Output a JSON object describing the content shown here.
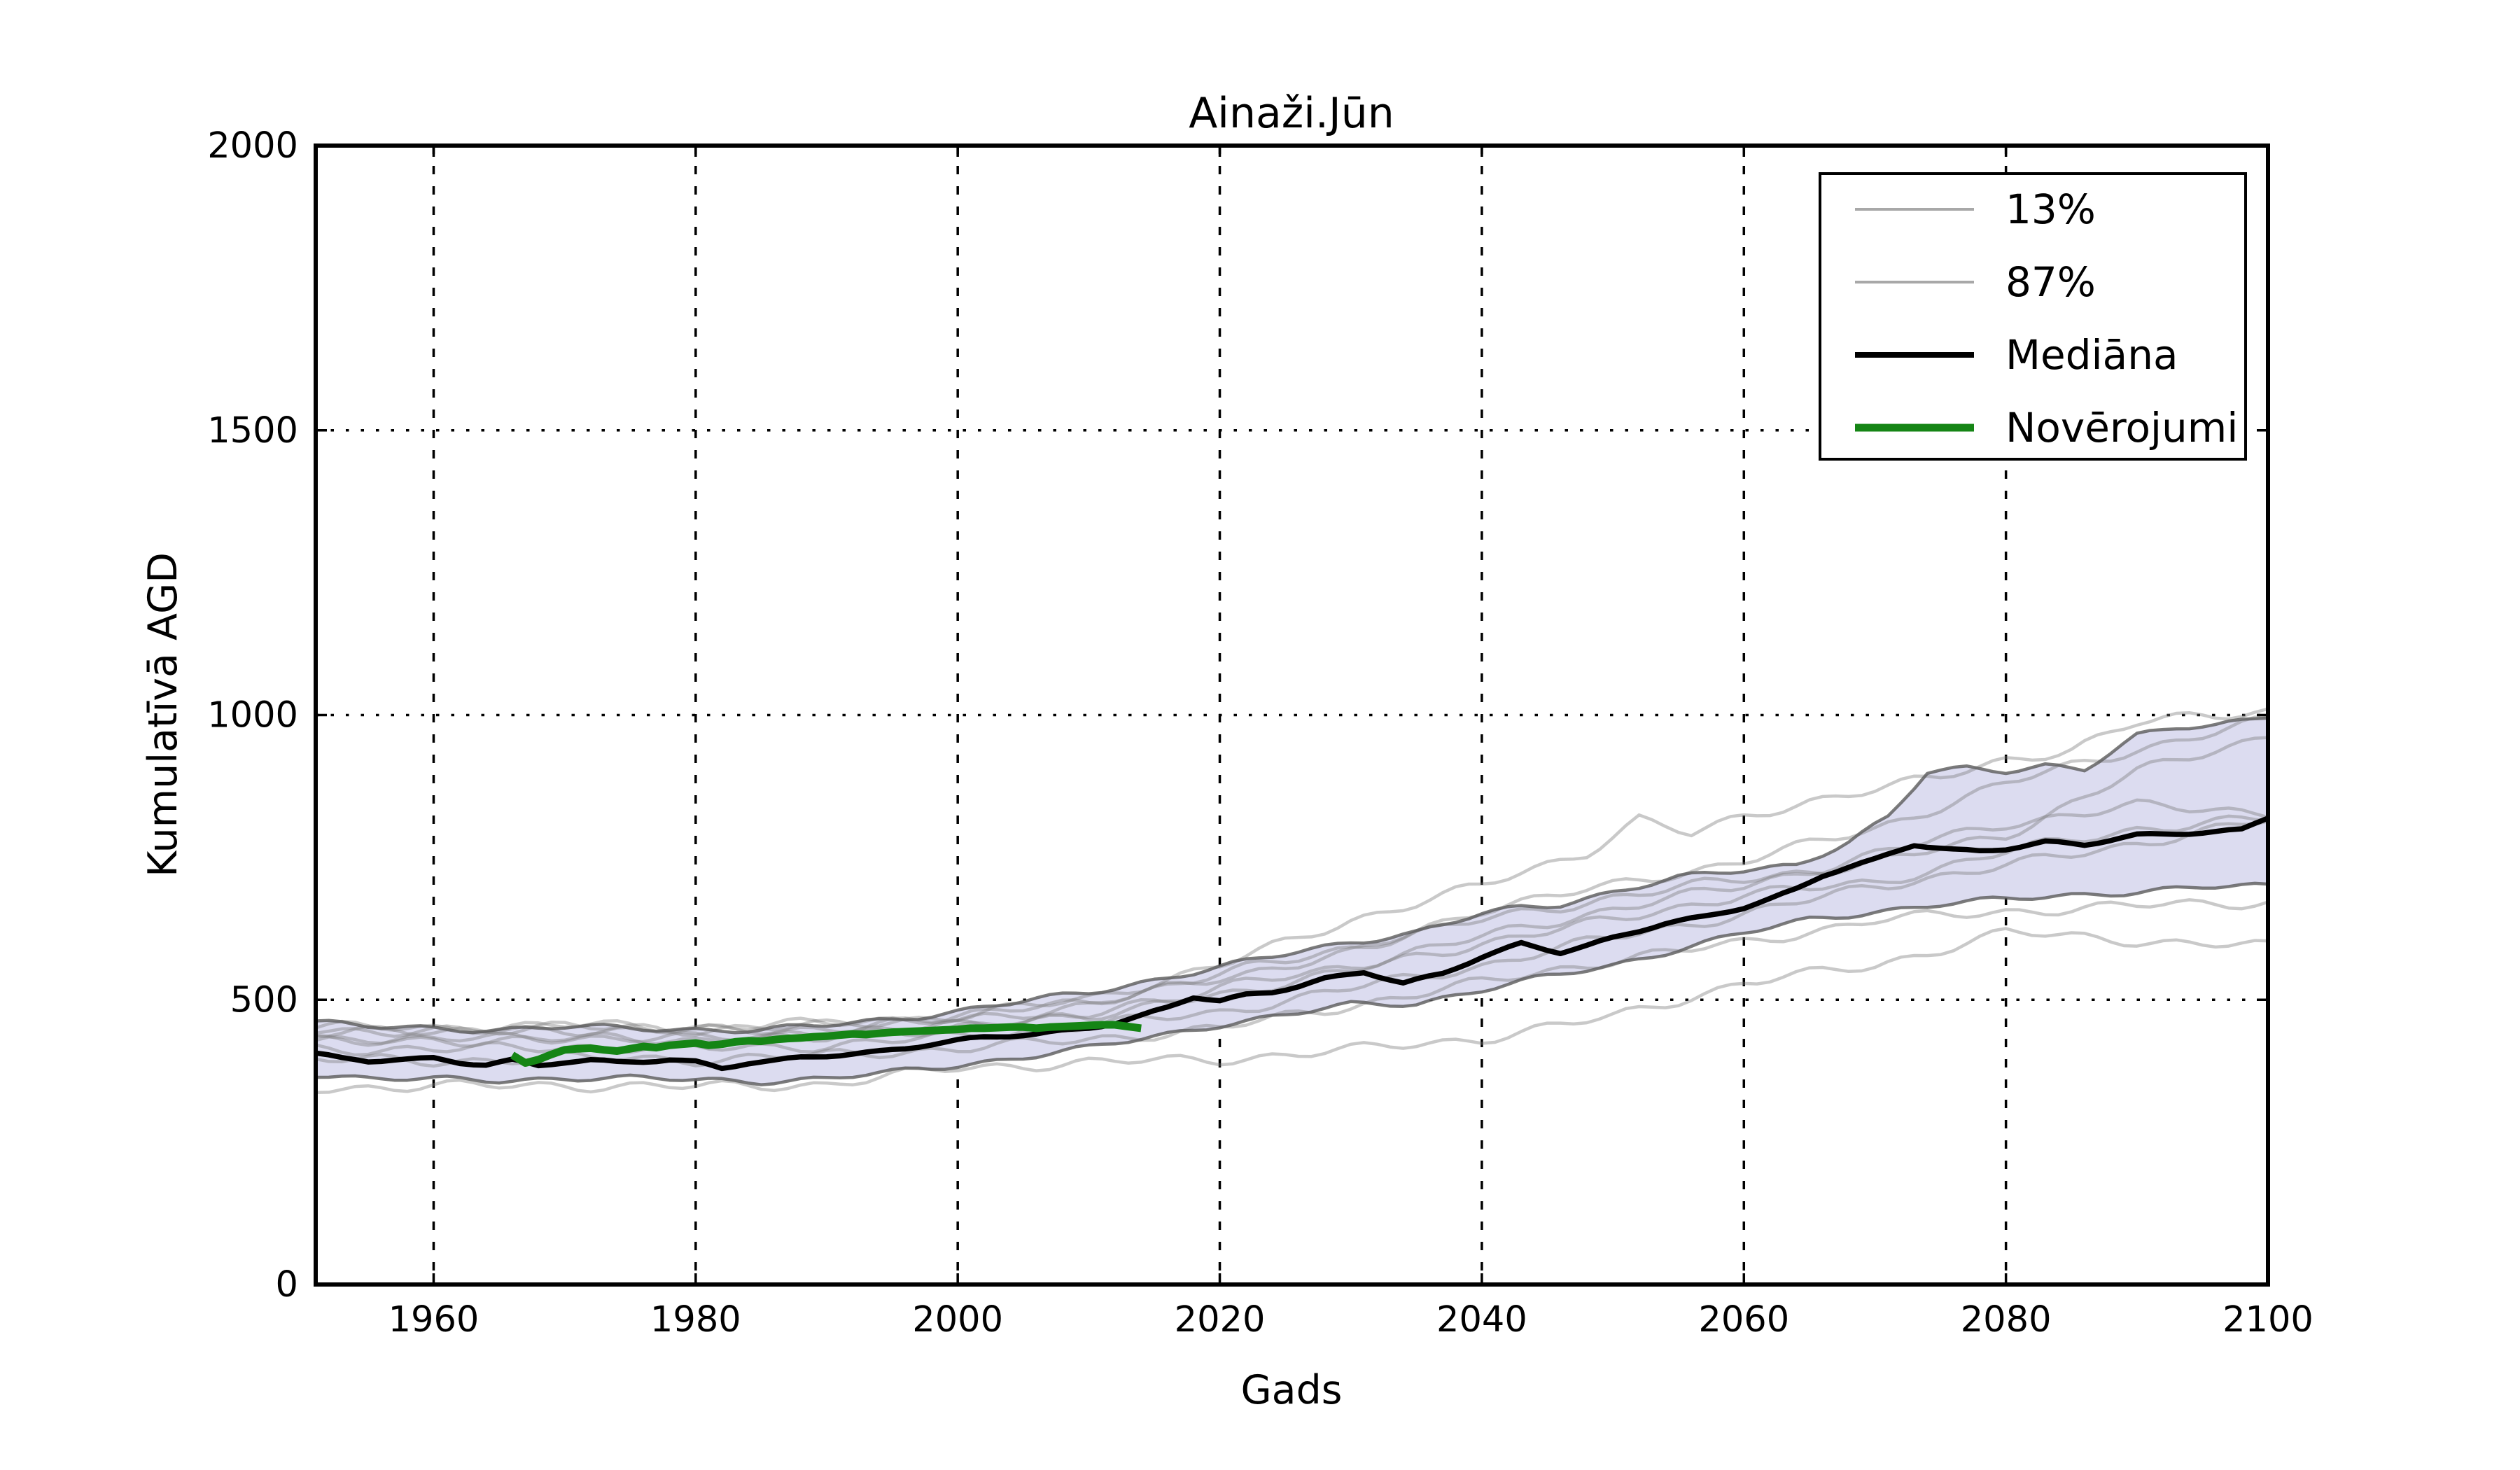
{
  "figure": {
    "title": "Ainaži.Jūn"
  },
  "chart_data": {
    "type": "line",
    "title": "Ainaži.Jūn",
    "xlabel": "Gads",
    "ylabel": "Kumulatīvā AGD",
    "xlim": [
      1951,
      2100
    ],
    "ylim": [
      0,
      2000
    ],
    "x_ticks": [
      1960,
      1980,
      2000,
      2020,
      2040,
      2060,
      2080,
      2100
    ],
    "y_ticks": [
      0,
      500,
      1000,
      1500,
      2000
    ],
    "grid": true,
    "colors": {
      "band_fill": "#dcdcf0",
      "band_edge": "rgba(90,90,90,0.8)",
      "ensemble": "rgba(120,120,120,0.40)",
      "median": "#000000",
      "observations": "#158515",
      "grid_line": "#000000",
      "legend_quantile_swatch": "#a8a8a8"
    },
    "legend": {
      "position": "upper right",
      "entries": [
        {
          "label": "13%",
          "color": "#a8a8a8",
          "width": 4
        },
        {
          "label": "87%",
          "color": "#a8a8a8",
          "width": 4
        },
        {
          "label": "Mediāna",
          "color": "#000000",
          "width": 8
        },
        {
          "label": "Novērojumi",
          "color": "#158515",
          "width": 11
        }
      ]
    },
    "band": {
      "name": "13-87% quantile band",
      "upper": {
        "x": [
          1951,
          1955,
          1960,
          1965,
          1970,
          1975,
          1980,
          1985,
          1990,
          1995,
          2000,
          2005,
          2010,
          2015,
          2020,
          2025,
          2030,
          2035,
          2040,
          2043,
          2046,
          2050,
          2055,
          2060,
          2064,
          2068,
          2071,
          2074,
          2077,
          2080,
          2083,
          2086,
          2090,
          2093,
          2096,
          2100
        ],
        "y": [
          461,
          452,
          450,
          448,
          452,
          450,
          448,
          447,
          455,
          466,
          480,
          497,
          513,
          535,
          557,
          580,
          602,
          618,
          650,
          662,
          668,
          690,
          714,
          727,
          738,
          778,
          820,
          898,
          906,
          903,
          913,
          905,
          962,
          977,
          983,
          1000
        ]
      },
      "lower": {
        "x": [
          1951,
          1955,
          1960,
          1965,
          1970,
          1975,
          1980,
          1985,
          1990,
          1995,
          2000,
          2005,
          2010,
          2015,
          2020,
          2025,
          2030,
          2035,
          2040,
          2045,
          2050,
          2055,
          2060,
          2065,
          2070,
          2075,
          2080,
          2085,
          2090,
          2095,
          2100
        ],
        "y": [
          370,
          362,
          360,
          358,
          363,
          362,
          359,
          357,
          362,
          372,
          385,
          400,
          415,
          435,
          457,
          473,
          491,
          494,
          518,
          540,
          560,
          590,
          617,
          640,
          655,
          668,
          676,
          684,
          690,
          697,
          700
        ]
      }
    },
    "series": [
      {
        "name": "Mediāna",
        "role": "median",
        "color": "#000000",
        "width": 7.5,
        "jitter": 2,
        "x": [
          1951,
          1953,
          1955,
          1957,
          1960,
          1962,
          1964,
          1966,
          1968,
          1970,
          1972,
          1974,
          1976,
          1978,
          1980,
          1982,
          1984,
          1986,
          1988,
          1990,
          1992,
          1994,
          1996,
          1998,
          2000,
          2002,
          2004,
          2006,
          2008,
          2010,
          2012,
          2014,
          2016,
          2018,
          2020,
          2022,
          2024,
          2026,
          2028,
          2031,
          2034,
          2037,
          2040,
          2043,
          2046,
          2048,
          2050,
          2052,
          2054,
          2057,
          2060,
          2062,
          2064,
          2066,
          2068,
          2070,
          2073,
          2076,
          2078,
          2080,
          2083,
          2086,
          2088,
          2090,
          2092,
          2095,
          2098,
          2100
        ],
        "y": [
          405,
          396,
          392,
          396,
          398,
          390,
          386,
          393,
          383,
          390,
          394,
          391,
          393,
          396,
          391,
          379,
          388,
          392,
          398,
          402,
          406,
          410,
          415,
          422,
          428,
          433,
          436,
          440,
          446,
          452,
          460,
          472,
          486,
          504,
          497,
          508,
          514,
          525,
          538,
          549,
          528,
          545,
          575,
          600,
          584,
          595,
          608,
          620,
          633,
          646,
          663,
          678,
          695,
          718,
          732,
          745,
          772,
          764,
          762,
          766,
          777,
          771,
          780,
          789,
          791,
          795,
          799,
          820
        ]
      },
      {
        "name": "Novērojumi",
        "role": "observations",
        "color": "#158515",
        "width": 11,
        "jitter": 0,
        "x": [
          1966,
          1967,
          1968,
          1969,
          1970,
          1971,
          1972,
          1973,
          1974,
          1975,
          1976,
          1977,
          1978,
          1979,
          1980,
          1981,
          1982,
          1983,
          1984,
          1985,
          1986,
          1987,
          1988,
          1989,
          1990,
          1991,
          1992,
          1993,
          1994,
          1995,
          1996,
          1997,
          1998,
          1999,
          2000,
          2001,
          2002,
          2003,
          2004,
          2005,
          2006,
          2007,
          2008,
          2009,
          2010,
          2011,
          2012,
          2013,
          2014
        ],
        "y": [
          403,
          389,
          395,
          404,
          412,
          414,
          415,
          412,
          410,
          414,
          418,
          416,
          420,
          422,
          424,
          420,
          422,
          426,
          428,
          427,
          430,
          432,
          433,
          435,
          436,
          438,
          440,
          439,
          441,
          443,
          444,
          445,
          446,
          447,
          448,
          450,
          450,
          451,
          452,
          452,
          450,
          452,
          453,
          454,
          455,
          456,
          456,
          453,
          450
        ]
      },
      {
        "name": "ensemble-1",
        "role": "ensemble",
        "color": "rgba(120,120,120,0.40)",
        "width": 4.5,
        "jitter": 7,
        "x": [
          1951,
          1960,
          1970,
          1980,
          1990,
          2000,
          2010,
          2020,
          2030,
          2040,
          2044,
          2048,
          2052,
          2056,
          2060,
          2065,
          2070,
          2075,
          2080,
          2085,
          2090,
          2095,
          2100
        ],
        "y": [
          440,
          446,
          452,
          448,
          454,
          472,
          502,
          560,
          640,
          700,
          730,
          760,
          818,
          790,
          820,
          850,
          870,
          890,
          922,
          940,
          985,
          1000,
          1008
        ]
      },
      {
        "name": "ensemble-2",
        "role": "ensemble",
        "color": "rgba(120,120,120,0.40)",
        "width": 4.5,
        "jitter": 7,
        "x": [
          1951,
          1960,
          1970,
          1980,
          1990,
          2000,
          2010,
          2020,
          2030,
          2040,
          2050,
          2060,
          2070,
          2080,
          2090,
          2100
        ],
        "y": [
          448,
          444,
          448,
          445,
          450,
          465,
          490,
          540,
          580,
          660,
          700,
          745,
          800,
          880,
          940,
          990
        ]
      },
      {
        "name": "ensemble-3",
        "role": "ensemble",
        "color": "rgba(120,120,120,0.40)",
        "width": 4.5,
        "jitter": 7,
        "x": [
          1951,
          1960,
          1970,
          1980,
          1990,
          2000,
          2010,
          2020,
          2030,
          2040,
          2050,
          2060,
          2070,
          2080,
          2090,
          2100
        ],
        "y": [
          425,
          428,
          432,
          430,
          436,
          452,
          470,
          520,
          560,
          610,
          660,
          700,
          755,
          810,
          840,
          830
        ]
      },
      {
        "name": "ensemble-4",
        "role": "ensemble",
        "color": "rgba(120,120,120,0.40)",
        "width": 4.5,
        "jitter": 7,
        "x": [
          1951,
          1960,
          1970,
          1980,
          1990,
          2000,
          2010,
          2020,
          2030,
          2040,
          2050,
          2060,
          2070,
          2080,
          2090,
          2100
        ],
        "y": [
          415,
          412,
          418,
          414,
          420,
          435,
          455,
          478,
          520,
          560,
          610,
          650,
          700,
          735,
          775,
          815
        ]
      },
      {
        "name": "ensemble-5",
        "role": "ensemble",
        "color": "rgba(120,120,120,0.40)",
        "width": 4.5,
        "jitter": 7,
        "x": [
          1951,
          1960,
          1970,
          1980,
          1990,
          2000,
          2010,
          2020,
          2030,
          2040,
          2050,
          2060,
          2070,
          2080,
          2090,
          2100
        ],
        "y": [
          395,
          392,
          398,
          395,
          402,
          415,
          430,
          450,
          490,
          530,
          570,
          600,
          640,
          655,
          665,
          672
        ]
      },
      {
        "name": "ensemble-6",
        "role": "ensemble",
        "color": "rgba(120,120,120,0.40)",
        "width": 4.5,
        "jitter": 7,
        "x": [
          1951,
          1960,
          1970,
          1980,
          1990,
          2000,
          2010,
          2020,
          2030,
          2040,
          2050,
          2060,
          2070,
          2080,
          2090,
          2100
        ],
        "y": [
          345,
          348,
          350,
          347,
          352,
          380,
          390,
          395,
          412,
          432,
          470,
          530,
          560,
          618,
          604,
          593
        ]
      },
      {
        "name": "ensemble-7",
        "role": "ensemble",
        "color": "rgba(120,120,120,0.40)",
        "width": 4.5,
        "jitter": 7,
        "x": [
          1951,
          1960,
          1970,
          1980,
          1990,
          2000,
          2010,
          2020,
          2030,
          2040,
          2050,
          2060,
          2070,
          2080,
          2090,
          2100
        ],
        "y": [
          452,
          450,
          455,
          452,
          458,
          472,
          495,
          545,
          592,
          640,
          680,
          712,
          740,
          790,
          900,
          965
        ]
      },
      {
        "name": "ensemble-8",
        "role": "ensemble",
        "color": "rgba(120,120,120,0.40)",
        "width": 4.5,
        "jitter": 7,
        "x": [
          1951,
          1960,
          1970,
          1980,
          1990,
          2000,
          2010,
          2020,
          2030,
          2040,
          2050,
          2060,
          2070,
          2080,
          2090,
          2100
        ],
        "y": [
          432,
          430,
          434,
          432,
          438,
          455,
          475,
          510,
          550,
          600,
          640,
          685,
          705,
          760,
          800,
          818
        ]
      }
    ]
  }
}
